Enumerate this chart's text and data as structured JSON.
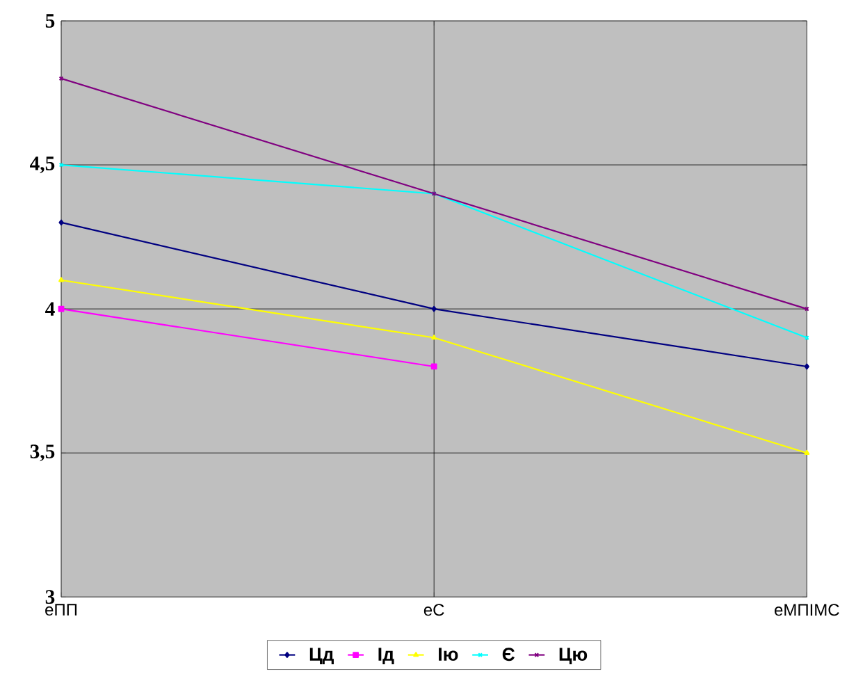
{
  "chart_data": {
    "type": "line",
    "categories": [
      "еПП",
      "еС",
      "еМПІМС"
    ],
    "series": [
      {
        "name": "Цд",
        "color": "#000080",
        "marker": "diamond",
        "values": [
          4.3,
          4.0,
          3.8
        ]
      },
      {
        "name": "Ід",
        "color": "#ff00ff",
        "marker": "square",
        "values": [
          4.0,
          3.8,
          null
        ]
      },
      {
        "name": "Ію",
        "color": "#ffff00",
        "marker": "triangle",
        "values": [
          4.1,
          3.9,
          3.5
        ]
      },
      {
        "name": "Є",
        "color": "#00ffff",
        "marker": "cross",
        "values": [
          4.5,
          4.4,
          3.9
        ]
      },
      {
        "name": "Цю",
        "color": "#800080",
        "marker": "cross",
        "values": [
          4.8,
          4.4,
          4.0
        ]
      }
    ],
    "ylim": [
      3,
      5
    ],
    "yticks": [
      3,
      {
        "value": 3.5,
        "label": "3,5"
      },
      4,
      {
        "value": 4.5,
        "label": "4,5"
      },
      5
    ],
    "grid": true,
    "legend": "bottom",
    "line_style": "solid"
  }
}
